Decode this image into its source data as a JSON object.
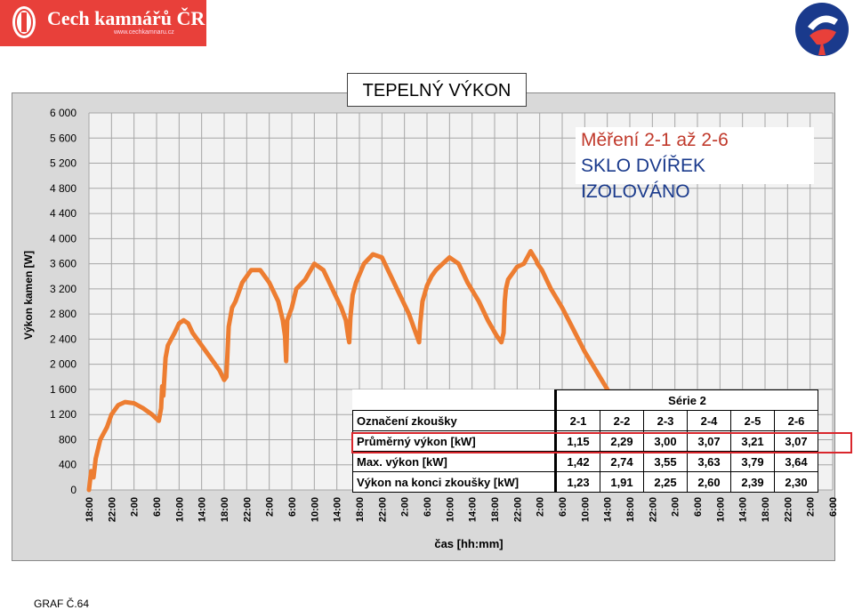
{
  "header": {
    "brand": "Cech kamnářů ČR",
    "url": "www.cechkamnaru.cz"
  },
  "footer": {
    "label": "GRAF Č.64"
  },
  "colors": {
    "series": "#ed7d31",
    "logo_red": "#e8403a",
    "highlight": "#d9262c"
  },
  "note": {
    "line1": "Měření 2-1 až 2-6",
    "line2": "SKLO DVÍŘEK IZOLOVÁNO"
  },
  "chart_data": {
    "type": "line",
    "title": "TEPELNÝ VÝKON",
    "xlabel": "čas [hh:mm]",
    "ylabel": "Výkon kamen [W]",
    "ylim": [
      0,
      6000
    ],
    "grid": true,
    "y_ticks": [
      "0",
      "400",
      "800",
      "1 200",
      "1 600",
      "2 000",
      "2 400",
      "2 800",
      "3 200",
      "3 600",
      "4 000",
      "4 400",
      "4 800",
      "5 200",
      "5 600",
      "6 000"
    ],
    "x_ticks": [
      "18:00",
      "22:00",
      "2:00",
      "6:00",
      "10:00",
      "14:00",
      "18:00",
      "22:00",
      "2:00",
      "6:00",
      "10:00",
      "14:00",
      "18:00",
      "22:00",
      "2:00",
      "6:00",
      "10:00",
      "14:00",
      "18:00",
      "22:00",
      "2:00",
      "6:00",
      "10:00",
      "14:00",
      "18:00",
      "22:00",
      "2:00",
      "6:00",
      "10:00",
      "14:00",
      "18:00",
      "22:00",
      "2:00",
      "6:00"
    ],
    "series": [
      {
        "x": [
          0,
          0.1,
          0.2,
          0.3,
          0.5,
          0.8,
          1.0,
          1.3,
          1.6,
          2.0,
          2.4,
          2.8,
          3.1,
          3.2,
          3.25,
          3.3,
          3.4,
          3.5,
          3.8,
          4.0,
          4.2,
          4.4,
          4.6,
          5.0,
          5.4,
          5.8,
          6.0,
          6.1,
          6.15,
          6.2,
          6.35,
          6.5,
          6.8,
          7.2,
          7.6,
          8.0,
          8.4,
          8.6,
          8.7,
          8.75,
          8.8,
          9.0,
          9.2,
          9.6,
          10.0,
          10.4,
          10.8,
          11.2,
          11.4,
          11.5,
          11.55,
          11.6,
          11.7,
          11.85,
          12.2,
          12.6,
          13.0,
          13.4,
          13.8,
          14.2,
          14.5,
          14.6,
          14.65,
          14.7,
          14.8,
          15.0,
          15.2,
          15.4,
          15.7,
          16.0,
          16.4,
          16.8,
          17.3,
          17.7,
          18.1,
          18.3,
          18.4,
          18.45,
          18.5,
          18.6,
          18.8,
          19.0,
          19.3,
          19.6,
          19.85,
          19.9,
          20.1,
          20.5,
          21.0,
          21.5,
          22.0,
          22.5,
          23.0,
          23.8
        ],
        "y": [
          0,
          300,
          200,
          500,
          800,
          1000,
          1200,
          1350,
          1400,
          1380,
          1300,
          1200,
          1100,
          1300,
          1650,
          1500,
          2100,
          2300,
          2500,
          2650,
          2700,
          2650,
          2500,
          2300,
          2100,
          1900,
          1750,
          1800,
          2200,
          2600,
          2900,
          3000,
          3300,
          3500,
          3500,
          3300,
          3000,
          2700,
          2450,
          2050,
          2700,
          2900,
          3200,
          3350,
          3600,
          3500,
          3200,
          2900,
          2700,
          2450,
          2350,
          2750,
          3100,
          3300,
          3600,
          3750,
          3700,
          3400,
          3100,
          2800,
          2500,
          2400,
          2350,
          2650,
          3000,
          3250,
          3400,
          3500,
          3600,
          3700,
          3600,
          3300,
          3000,
          2700,
          2450,
          2350,
          2500,
          3000,
          3200,
          3350,
          3450,
          3550,
          3600,
          3800,
          3650,
          3600,
          3500,
          3200,
          2900,
          2550,
          2200,
          1900,
          1600,
          1100
        ]
      }
    ]
  },
  "table": {
    "group_header": "Série 2",
    "row_header_label": "Označení zkoušky",
    "columns": [
      "2-1",
      "2-2",
      "2-3",
      "2-4",
      "2-5",
      "2-6"
    ],
    "rows": [
      {
        "label": "Průměrný výkon [kW]",
        "values": [
          "1,15",
          "2,29",
          "3,00",
          "3,07",
          "3,21",
          "3,07"
        ]
      },
      {
        "label": "Max. výkon [kW]",
        "values": [
          "1,42",
          "2,74",
          "3,55",
          "3,63",
          "3,79",
          "3,64"
        ]
      },
      {
        "label": "Výkon na konci zkoušky  [kW]",
        "values": [
          "1,23",
          "1,91",
          "2,25",
          "2,60",
          "2,39",
          "2,30"
        ]
      }
    ]
  }
}
